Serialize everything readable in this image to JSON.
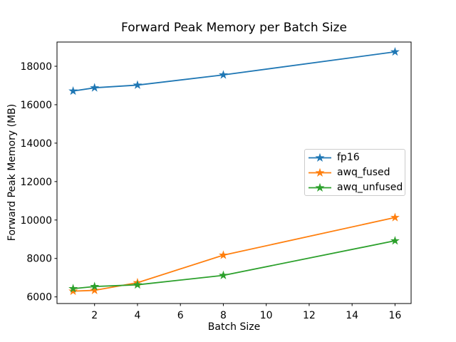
{
  "chart_data": {
    "type": "line",
    "title": "Forward Peak Memory per Batch Size",
    "xlabel": "Batch Size",
    "ylabel": "Forward Peak Memory (MB)",
    "x": [
      1,
      2,
      4,
      8,
      16
    ],
    "series": [
      {
        "name": "fp16",
        "color": "#1f77b4",
        "marker": "star",
        "values": [
          16710,
          16880,
          17020,
          17550,
          18750
        ]
      },
      {
        "name": "awq_fused",
        "color": "#ff7f0e",
        "marker": "star",
        "values": [
          6300,
          6340,
          6740,
          8170,
          10130
        ]
      },
      {
        "name": "awq_unfused",
        "color": "#2ca02c",
        "marker": "star",
        "values": [
          6430,
          6540,
          6630,
          7120,
          8920
        ]
      }
    ],
    "xticks": [
      2,
      4,
      6,
      8,
      10,
      12,
      14,
      16
    ],
    "yticks": [
      6000,
      8000,
      10000,
      12000,
      14000,
      16000,
      18000
    ],
    "xlim": [
      0.25,
      16.75
    ],
    "ylim": [
      5655,
      19260
    ],
    "grid": false,
    "legend": {
      "position": "center right",
      "entries": [
        "fp16",
        "awq_fused",
        "awq_unfused"
      ]
    }
  }
}
